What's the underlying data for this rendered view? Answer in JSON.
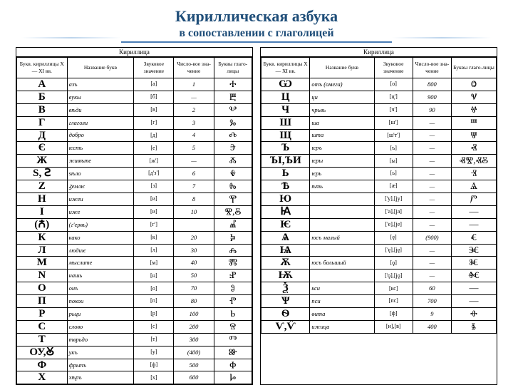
{
  "title": "Кириллическая азбука",
  "subtitle": "в сопоставлении с глаголицей",
  "table_caption_left": "Кириллица",
  "table_caption_right": "Кириллица",
  "headers": [
    "Букв. кириллицы X — XI вв.",
    "Название букв",
    "Звуковое значение",
    "Число-вое зна-чение",
    "Буквы глаго-лицы"
  ],
  "colors": {
    "title": "#1f4e79",
    "rule": "#4a7db5",
    "border": "#000000",
    "background": "#ffffff"
  },
  "font_sizes": {
    "title": 22,
    "subtitle": 16,
    "header": 7.5,
    "cell": 8.5,
    "cyrillic": 15
  },
  "left_rows": [
    {
      "c": "А",
      "n": "азъ",
      "s": "[а]",
      "v": "1",
      "g": "Ⰰ"
    },
    {
      "c": "Б",
      "n": "вукы",
      "s": "[б]",
      "v": "—",
      "g": "Ⰱ"
    },
    {
      "c": "В",
      "n": "вѣди",
      "s": "[в]",
      "v": "2",
      "g": "Ⰲ"
    },
    {
      "c": "Г",
      "n": "глаголи",
      "s": "[г]",
      "v": "3",
      "g": "Ⰳ"
    },
    {
      "c": "Д",
      "n": "добро",
      "s": "[д]",
      "v": "4",
      "g": "Ⰴ"
    },
    {
      "c": "Є",
      "n": "ѥсть",
      "s": "[е]",
      "v": "5",
      "g": "Ⰵ"
    },
    {
      "c": "Ж",
      "n": "живѣте",
      "s": "[ж']",
      "v": "—",
      "g": "Ⰶ"
    },
    {
      "c": "Ѕ, Ꙅ",
      "n": "ѕѣло",
      "s": "[д'з']",
      "v": "6",
      "g": "Ⰷ"
    },
    {
      "c": "Z",
      "n": "ꙁемлѥ",
      "s": "[з]",
      "v": "7",
      "g": "Ⰸ"
    },
    {
      "c": "Н",
      "n": "ижеи",
      "s": "[и]",
      "v": "8",
      "g": "Ⰹ"
    },
    {
      "c": "І",
      "n": "иже",
      "s": "[и]",
      "v": "10",
      "g": "Ⰺ,Ⰻ"
    },
    {
      "c": "(Ꙉ)",
      "n": "(г'ервь)",
      "s": "[г']",
      "v": "",
      "g": "Ⰼ"
    },
    {
      "c": "К",
      "n": "како",
      "s": "[к]",
      "v": "20",
      "g": "Ⰽ"
    },
    {
      "c": "Л",
      "n": "людиѥ",
      "s": "[л]",
      "v": "30",
      "g": "Ⰾ"
    },
    {
      "c": "М",
      "n": "мыслите",
      "s": "[м]",
      "v": "40",
      "g": "Ⰿ"
    },
    {
      "c": "N",
      "n": "нашь",
      "s": "[н]",
      "v": "50",
      "g": "Ⱀ"
    },
    {
      "c": "О",
      "n": "онъ",
      "s": "[о]",
      "v": "70",
      "g": "Ⱁ"
    },
    {
      "c": "П",
      "n": "покои",
      "s": "[п]",
      "v": "80",
      "g": "Ⱂ"
    },
    {
      "c": "Р",
      "n": "рьци",
      "s": "[р]",
      "v": "100",
      "g": "Ⱃ"
    },
    {
      "c": "С",
      "n": "слово",
      "s": "[с]",
      "v": "200",
      "g": "Ⱄ"
    },
    {
      "c": "Т",
      "n": "тврьдо",
      "s": "[т]",
      "v": "300",
      "g": "Ⱅ"
    },
    {
      "c": "ОУ,Ꙋ",
      "n": "укъ",
      "s": "[у]",
      "v": "(400)",
      "g": "Ⱆ"
    },
    {
      "c": "Ф",
      "n": "фрьтъ",
      "s": "[ф]",
      "v": "500",
      "g": "Ⱇ"
    },
    {
      "c": "Х",
      "n": "хѣръ",
      "s": "[х]",
      "v": "600",
      "g": "Ⱈ"
    }
  ],
  "right_rows": [
    {
      "c": "Ѡ",
      "n": "отъ (омега)",
      "s": "[о]",
      "v": "800",
      "g": "Ⱉ"
    },
    {
      "c": "Ц",
      "n": "ци",
      "s": "[ц']",
      "v": "900",
      "g": "Ⱌ"
    },
    {
      "c": "Ч",
      "n": "чрьвь",
      "s": "[ч']",
      "v": "90",
      "g": "Ⱍ"
    },
    {
      "c": "Ш",
      "n": "ша",
      "s": "[ш']",
      "v": "—",
      "g": "Ⱎ"
    },
    {
      "c": "Щ",
      "n": "шта",
      "s": "[ш'т']",
      "v": "—",
      "g": "Ⱋ"
    },
    {
      "c": "Ъ",
      "n": "ѥръ",
      "s": "[ъ]",
      "v": "—",
      "g": "Ⱏ"
    },
    {
      "c": "ЪІ,ЪИ",
      "n": "ѥры",
      "s": "[ы]",
      "v": "—",
      "g": "ⰟⰊ,ⰟⰋ"
    },
    {
      "c": "Ь",
      "n": "ѥрь",
      "s": "[ь]",
      "v": "—",
      "g": "Ⱐ"
    },
    {
      "c": "Ѣ",
      "n": "ѣть",
      "s": "[æ]",
      "v": "—",
      "g": "Ⱑ"
    },
    {
      "c": "Ю",
      "n": "",
      "s": "['у],[jу]",
      "v": "—",
      "g": "Ⱓ"
    },
    {
      "c": "Ꙗ",
      "n": "",
      "s": "['а],[jа]",
      "v": "—",
      "g": "—"
    },
    {
      "c": "Ѥ",
      "n": "",
      "s": "['е],[jе]",
      "v": "—",
      "g": "—"
    },
    {
      "c": "Ѧ",
      "n": "юсъ малый",
      "s": "[ę]",
      "v": "(900)",
      "g": "Ⱔ"
    },
    {
      "c": "Ѩ",
      "n": "",
      "s": "['ę],[ję]",
      "v": "—",
      "g": "Ⱗ"
    },
    {
      "c": "Ѫ",
      "n": "юсъ большый",
      "s": "[ǫ]",
      "v": "—",
      "g": "Ⱘ"
    },
    {
      "c": "Ѭ",
      "n": "",
      "s": "['ǫ],[jǫ]",
      "v": "—",
      "g": "Ⱙ"
    },
    {
      "c": "Ѯ",
      "n": "кси",
      "s": "[кс]",
      "v": "60",
      "g": "—"
    },
    {
      "c": "Ѱ",
      "n": "пси",
      "s": "[пс]",
      "v": "700",
      "g": "—"
    },
    {
      "c": "Ѳ",
      "n": "ѳита",
      "s": "[ф]",
      "v": "9",
      "g": "Ⱚ"
    },
    {
      "c": "Ѵ,Ѷ",
      "n": "ижица",
      "s": "[и],[в]",
      "v": "400",
      "g": "Ⱛ"
    }
  ]
}
